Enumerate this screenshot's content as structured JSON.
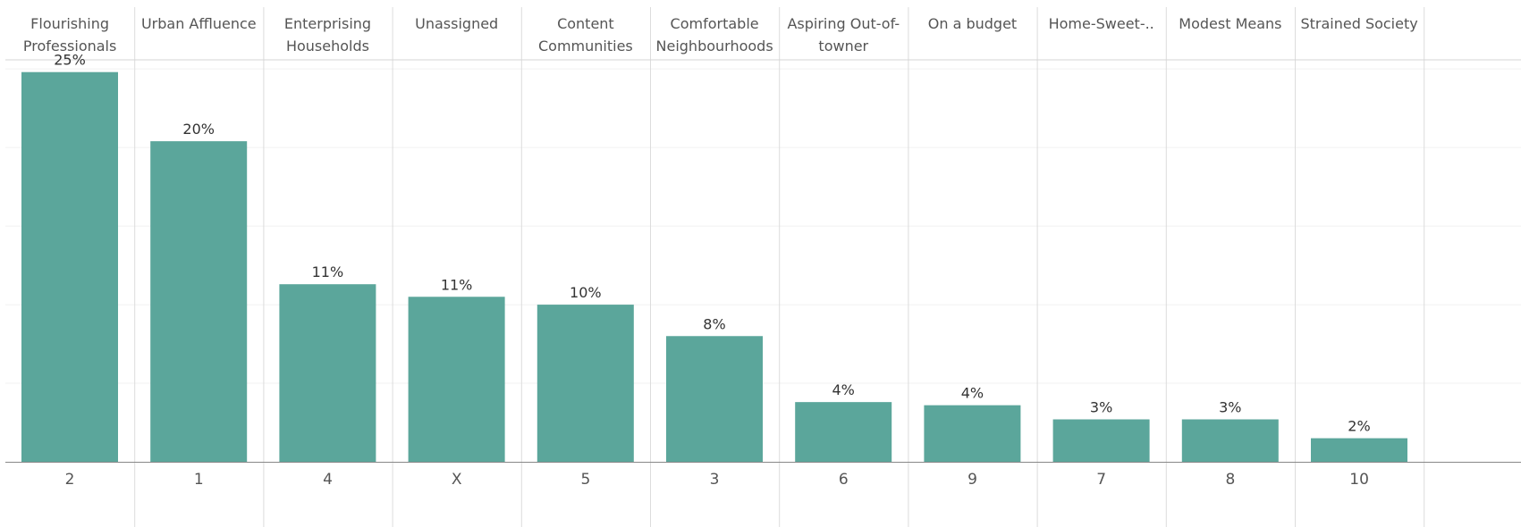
{
  "chart_data": {
    "type": "bar",
    "categories": [
      "2",
      "1",
      "4",
      "X",
      "5",
      "3",
      "6",
      "9",
      "7",
      "8",
      "10"
    ],
    "headers": [
      "Flourishing Professionals",
      "Urban Affluence",
      "Enterprising Households",
      "Unassigned",
      "Content Communities",
      "Comfortable Neighbourhoods",
      "Aspiring Out-of-towner",
      "On a budget",
      "Home-Sweet-..",
      "Modest Means",
      "Strained Society"
    ],
    "values": [
      24.8,
      20.4,
      11.3,
      10.5,
      10.0,
      8.0,
      3.8,
      3.6,
      2.7,
      2.7,
      1.5
    ],
    "data_labels": [
      "25%",
      "20%",
      "11%",
      "11%",
      "10%",
      "8%",
      "4%",
      "4%",
      "3%",
      "3%",
      "2%"
    ],
    "ylim": [
      0,
      27
    ],
    "gridlines": [
      5,
      10,
      15,
      20,
      25
    ],
    "bar_color": "#5ba69b",
    "grid": true
  }
}
